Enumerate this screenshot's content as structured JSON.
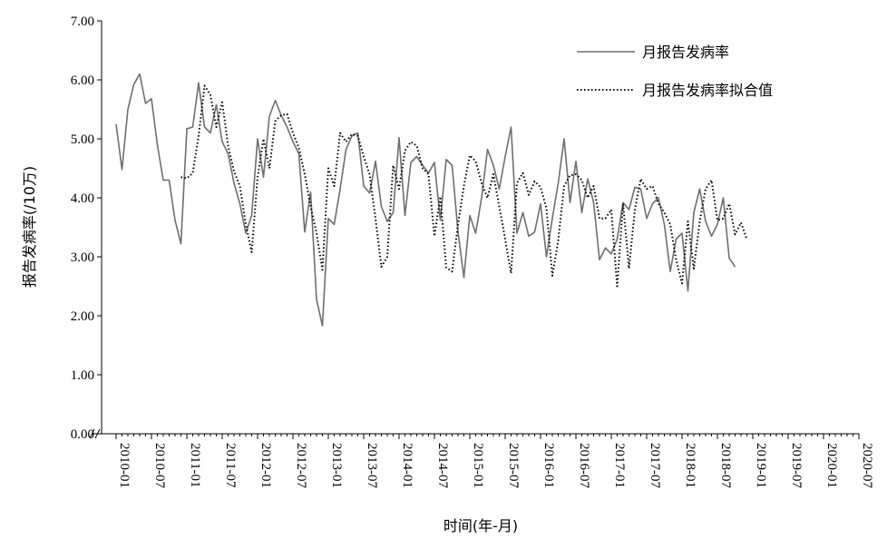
{
  "chart_data": {
    "type": "line",
    "xlabel": "时间(年-月)",
    "ylabel": "报告发病率(/10万)",
    "ylim": [
      0,
      7
    ],
    "yticks": [
      "0.00",
      "1.00",
      "2.00",
      "3.00",
      "4.00",
      "5.00",
      "6.00",
      "7.00"
    ],
    "xtick_labels": [
      "2010-01",
      "2010-07",
      "2011-01",
      "2011-07",
      "2012-01",
      "2012-07",
      "2013-01",
      "2013-07",
      "2014-01",
      "2014-07",
      "2015-01",
      "2015-07",
      "2016-01",
      "2016-07",
      "2017-01",
      "2017-07",
      "2018-01",
      "2018-07",
      "2019-01",
      "2019-07",
      "2020-01",
      "2020-07"
    ],
    "x_start": "2010-01",
    "legend_position": "top-right",
    "axis_break": true,
    "series": [
      {
        "name": "月报告发病率",
        "style": "solid",
        "color": "#6e6e6e",
        "values": [
          5.25,
          4.48,
          5.5,
          5.92,
          6.1,
          5.6,
          5.68,
          4.9,
          4.3,
          4.3,
          3.62,
          3.22,
          5.17,
          5.2,
          5.95,
          5.2,
          5.1,
          5.58,
          4.95,
          4.75,
          4.25,
          3.9,
          3.4,
          3.7,
          5.0,
          4.35,
          5.38,
          5.65,
          5.4,
          5.2,
          4.95,
          4.75,
          3.42,
          4.1,
          2.28,
          1.83,
          3.65,
          3.55,
          4.15,
          4.82,
          5.05,
          5.1,
          4.2,
          4.08,
          4.62,
          3.85,
          3.6,
          3.75,
          5.02,
          3.7,
          4.6,
          4.7,
          4.55,
          4.42,
          4.6,
          3.62,
          4.65,
          4.55,
          3.42,
          2.65,
          3.7,
          3.4,
          4.0,
          4.82,
          4.55,
          4.15,
          4.7,
          5.2,
          3.4,
          3.75,
          3.35,
          3.42,
          3.9,
          3.0,
          3.65,
          4.25,
          5.0,
          3.92,
          4.62,
          3.75,
          4.32,
          3.92,
          2.95,
          3.15,
          3.05,
          3.3,
          3.92,
          3.8,
          4.18,
          4.15,
          3.65,
          3.9,
          4.0,
          3.55,
          2.75,
          3.3,
          3.4,
          2.42,
          3.75,
          4.15,
          3.6,
          3.35,
          3.55,
          4.0,
          2.98,
          2.83
        ]
      },
      {
        "name": "月报告发病率拟合值",
        "style": "dotted",
        "color": "#000000",
        "start_index": 11,
        "values": [
          4.35,
          4.33,
          4.42,
          5.05,
          5.9,
          5.75,
          5.2,
          5.62,
          4.88,
          4.45,
          4.2,
          3.55,
          3.08,
          4.35,
          5.0,
          4.5,
          5.3,
          5.4,
          5.42,
          5.1,
          4.85,
          4.4,
          3.85,
          3.4,
          2.78,
          4.5,
          4.2,
          5.1,
          4.95,
          5.08,
          5.05,
          4.7,
          4.4,
          3.65,
          2.83,
          3.0,
          4.55,
          4.15,
          4.8,
          4.95,
          4.88,
          4.5,
          4.4,
          3.35,
          4.02,
          2.82,
          2.75,
          3.55,
          4.2,
          4.72,
          4.62,
          4.25,
          4.0,
          4.4,
          3.85,
          3.3,
          2.72,
          4.25,
          4.42,
          4.05,
          4.28,
          4.18,
          3.82,
          2.68,
          3.28,
          4.2,
          4.38,
          4.4,
          4.3,
          4.0,
          4.2,
          3.65,
          3.65,
          3.8,
          2.5,
          3.9,
          2.8,
          3.8,
          4.32,
          4.15,
          4.2,
          3.9,
          3.75,
          3.55,
          2.95,
          2.55,
          3.6,
          2.8,
          3.6,
          4.15,
          4.3,
          3.62,
          3.65,
          3.9,
          3.38,
          3.58,
          3.3
        ]
      }
    ]
  }
}
